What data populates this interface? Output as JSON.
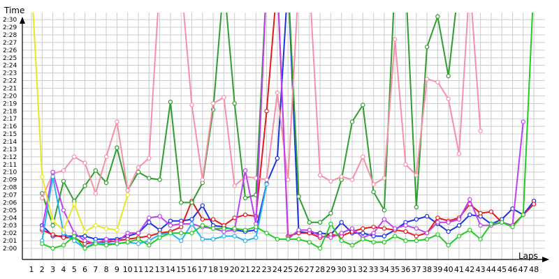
{
  "chart_data": {
    "type": "line",
    "xlabel": "Laps",
    "ylabel": "Time",
    "grid": true,
    "legend": "none",
    "xlim": [
      1,
      48
    ],
    "ylim": [
      "2:00",
      "2:31"
    ],
    "x_ticks": [
      1,
      2,
      3,
      4,
      5,
      6,
      7,
      8,
      9,
      10,
      11,
      12,
      13,
      14,
      15,
      16,
      17,
      18,
      19,
      20,
      21,
      22,
      23,
      24,
      25,
      26,
      27,
      28,
      29,
      30,
      31,
      32,
      33,
      34,
      35,
      36,
      37,
      38,
      39,
      40,
      41,
      42,
      43,
      44,
      45,
      46,
      47,
      48
    ],
    "y_ticks": [
      "2:00",
      "2:01",
      "2:02",
      "2:03",
      "2:04",
      "2:05",
      "2:06",
      "2:07",
      "2:08",
      "2:09",
      "2:10",
      "2:11",
      "2:12",
      "2:13",
      "2:14",
      "2:15",
      "2:16",
      "2:17",
      "2:18",
      "2:19",
      "2:20",
      "2:21",
      "2:22",
      "2:23",
      "2:24",
      "2:25",
      "2:26",
      "2:27",
      "2:28",
      "2:29",
      "2:30"
    ],
    "series": [
      {
        "color": "#1a33e0",
        "x": [
          2,
          3,
          4,
          5,
          6,
          7,
          8,
          9,
          10,
          11,
          12,
          13,
          14,
          15,
          16,
          17,
          18,
          19,
          20,
          21,
          22,
          23,
          24,
          25,
          26,
          27,
          28,
          29,
          30,
          31,
          32,
          33,
          34,
          35,
          36,
          37,
          38,
          39,
          40,
          41,
          42,
          43,
          44,
          45,
          46,
          47,
          48
        ],
        "y": [
          "2:03",
          "2:01.6",
          "2:01.6",
          "2:01.6",
          "2:01.6",
          "2:01.2",
          "2:01.2",
          "2:01.2",
          "2:01.6",
          "2:02",
          "2:03.4",
          "2:02.4",
          "2:03.6",
          "2:03.6",
          "2:03.8",
          "2:05.6",
          "2:03",
          "2:02.8",
          "2:02.4",
          "2:02.2",
          "2:02.4",
          "2:08.5",
          "2:11.8",
          "2:35",
          "2:02.2",
          "2:02",
          "2:02",
          "2:01.8",
          "2:03.4",
          "2:02",
          "2:02",
          "2:01.6",
          "2:01.6",
          "2:02.4",
          "2:03.4",
          "2:03.8",
          "2:04.2",
          "2:03.2",
          "2:02.2",
          "2:03",
          "2:04.4",
          "2:04.2",
          "2:03.2",
          "2:03.8",
          "2:05.2",
          "2:04.4",
          "2:06.2"
        ]
      },
      {
        "color": "#e31a1c",
        "x": [
          2,
          3,
          4,
          5,
          6,
          7,
          8,
          9,
          10,
          11,
          12,
          13,
          14,
          15,
          16,
          17,
          18,
          19,
          20,
          21,
          22,
          23,
          24,
          25,
          26,
          27,
          28,
          29,
          30,
          31,
          32,
          33,
          34,
          35,
          36,
          37,
          38,
          39,
          40,
          41,
          42,
          43,
          44,
          45,
          46,
          47,
          48
        ],
        "y": [
          "2:02.4",
          "2:01.8",
          "2:01.4",
          "2:01.4",
          "2:00.6",
          "2:00.8",
          "2:00.8",
          "2:01",
          "2:01.2",
          "2:01.4",
          "2:01.6",
          "2:02",
          "2:02.2",
          "2:02.8",
          "2:06.2",
          "2:03.8",
          "2:03.8",
          "2:03",
          "2:04",
          "2:04.4",
          "2:04.2",
          "2:18",
          "2:35",
          "2:01.6",
          "2:02",
          "2:02",
          "2:01.4",
          "2:01.8",
          "2:01.6",
          "2:02.2",
          "2:02.6",
          "2:02.8",
          "2:02.6",
          "2:02.4",
          "2:02.2",
          "2:01.6",
          "2:02",
          "2:04",
          "2:03.6",
          "2:04",
          "2:05.8",
          "2:04.6",
          "2:04.8",
          "2:03.4",
          "2:03",
          "2:04.4",
          "2:05.8"
        ]
      },
      {
        "color": "#2e9e2e",
        "x": [
          2,
          3,
          4,
          5,
          6,
          7,
          8,
          9,
          10,
          11,
          12,
          13,
          14,
          15,
          16,
          17,
          18,
          19,
          20,
          21,
          22,
          23,
          24,
          25,
          26,
          27,
          28,
          29,
          30,
          31,
          32,
          33,
          34,
          35,
          36,
          37,
          38,
          39,
          40,
          41,
          42,
          43,
          44,
          45,
          46,
          47,
          48
        ],
        "y": [
          "2:07.2",
          "2:03",
          "2:08.8",
          "2:06.2",
          "2:08.2",
          "2:10.2",
          "2:08.6",
          "2:13.2",
          "2:07.6",
          "2:10",
          "2:09.2",
          "2:09",
          "2:19.2",
          "2:06",
          "2:06",
          "2:08.6",
          "2:18.2",
          "2:35",
          "2:19",
          "2:06.6",
          "2:07",
          "2:35",
          "2:35",
          "2:35",
          "2:06.8",
          "2:03.4",
          "2:03.4",
          "2:04.6",
          "2:09",
          "2:16.6",
          "2:18.8",
          "2:07.4",
          "2:05",
          "2:35",
          "2:35",
          "2:05.4",
          "2:26.4",
          "2:30.4",
          "2:22.6",
          "2:35",
          "2:35",
          "2:35",
          "2:35",
          "2:35",
          "2:35",
          "2:35",
          "2:35"
        ]
      },
      {
        "color": "#f78fa7",
        "x": [
          2,
          3,
          4,
          5,
          6,
          7,
          8,
          9,
          10,
          11,
          12,
          13,
          14,
          15,
          16,
          17,
          18,
          19,
          20,
          21,
          22,
          23,
          24,
          25,
          26,
          27,
          28,
          29,
          30,
          31,
          32,
          33,
          34,
          35,
          36,
          37,
          38,
          39,
          40,
          41,
          42,
          43
        ],
        "y": [
          "2:06.6",
          "2:09.8",
          "2:10.2",
          "2:12",
          "2:11.2",
          "2:07.2",
          "2:12",
          "2:16.6",
          "2:07.6",
          "2:10.6",
          "2:11.8",
          "2:35",
          "2:35",
          "2:35",
          "2:18.8",
          "2:09",
          "2:19",
          "2:19.8",
          "2:08.2",
          "2:09.4",
          "2:09.2",
          "2:09",
          "2:20.4",
          "2:09",
          "2:35",
          "2:35",
          "2:09.6",
          "2:08.8",
          "2:09.4",
          "2:09",
          "2:12",
          "2:08.4",
          "2:09.2",
          "2:27.4",
          "2:11",
          "2:09.6",
          "2:22.2",
          "2:21.8",
          "2:19.6",
          "2:12.4",
          "2:35",
          "2:15.4"
        ]
      },
      {
        "color": "#c040f0",
        "x": [
          2,
          3,
          4,
          5,
          6,
          7,
          8,
          9,
          10,
          11,
          12,
          13,
          14,
          15,
          16,
          17,
          18,
          19,
          20,
          21,
          22,
          23,
          24,
          25,
          26,
          27,
          28,
          29,
          30,
          31,
          32,
          33,
          34,
          35,
          36,
          37,
          38,
          39,
          40,
          41,
          42,
          43,
          44,
          45,
          46,
          47
        ],
        "y": [
          "2:02.6",
          "2:10",
          "2:05",
          "2:02",
          "2:01",
          "2:00.6",
          "2:01.2",
          "2:00.8",
          "2:02",
          "2:02",
          "2:04",
          "2:04.2",
          "2:03",
          "2:03.2",
          "2:03.2",
          "2:02.8",
          "2:02.6",
          "2:02.2",
          "2:02.4",
          "2:10.2",
          "2:03.2",
          "2:35",
          "2:35",
          "2:01.2",
          "2:02.4",
          "2:02.4",
          "2:01.6",
          "2:01.4",
          "2:02",
          "2:02.6",
          "2:01.4",
          "2:02",
          "2:03.8",
          "2:02.6",
          "2:03",
          "2:02.6",
          "2:02",
          "2:03.4",
          "2:03.4",
          "2:03.8",
          "2:06.4",
          "2:03",
          "2:03",
          "2:03.4",
          "2:03",
          "2:16.6"
        ]
      },
      {
        "color": "#28b2f0",
        "x": [
          2,
          3,
          4,
          5,
          6,
          7,
          8,
          9,
          10,
          11,
          12,
          13,
          14,
          15,
          16,
          17,
          18,
          19,
          20,
          21,
          22,
          23
        ],
        "y": [
          "2:01",
          "2:09.4",
          "2:02",
          "2:01",
          "2:00",
          "2:00.8",
          "2:00.6",
          "2:00.6",
          "2:00.8",
          "2:00.6",
          "2:01",
          "2:01.8",
          "2:02",
          "2:01",
          "2:03.2",
          "2:01.2",
          "2:01.2",
          "2:01.6",
          "2:01.6",
          "2:01",
          "2:01.4",
          "2:08.4"
        ]
      },
      {
        "color": "#e8e820",
        "x": [
          1,
          2,
          3,
          4,
          5,
          6,
          7,
          8,
          9,
          10
        ],
        "y": [
          "2:35",
          "2:09.4",
          "2:03.6",
          "2:02.4",
          "2:05.8",
          "2:02.2",
          "2:03",
          "2:02.6",
          "2:02.4",
          "2:07"
        ]
      },
      {
        "color": "#22cc22",
        "x": [
          2,
          3,
          4,
          5,
          6,
          7,
          8,
          9,
          10,
          11,
          12,
          13,
          14,
          15,
          16,
          17,
          18,
          19,
          20,
          21,
          22,
          23,
          24,
          25,
          26,
          27,
          28,
          29,
          30,
          31,
          32,
          33,
          34,
          35,
          36,
          37,
          38,
          39,
          40,
          41,
          42,
          43,
          44,
          45,
          46,
          47,
          48
        ],
        "y": [
          "2:00.6",
          "2:00",
          "2:00.4",
          "2:01.6",
          "2:00",
          "2:00.6",
          "2:00.4",
          "2:00.6",
          "2:00.8",
          "2:01.2",
          "2:00.4",
          "2:01.4",
          "2:02",
          "2:02",
          "2:02",
          "2:03",
          "2:02.6",
          "2:02.6",
          "2:02.6",
          "2:02.4",
          "2:02.8",
          "2:02",
          "2:01.2",
          "2:01.2",
          "2:01.2",
          "2:00.8",
          "2:00",
          "2:03.2",
          "2:01",
          "2:00.4",
          "2:01.2",
          "2:00.8",
          "2:00.8",
          "2:01.6",
          "2:01",
          "2:01",
          "2:01.2",
          "2:01.8",
          "2:00.4",
          "2:01.6",
          "2:02.4",
          "2:01.2",
          "2:03.2",
          "2:03.4",
          "2:02.8",
          "2:04.4",
          "2:35"
        ]
      }
    ]
  }
}
